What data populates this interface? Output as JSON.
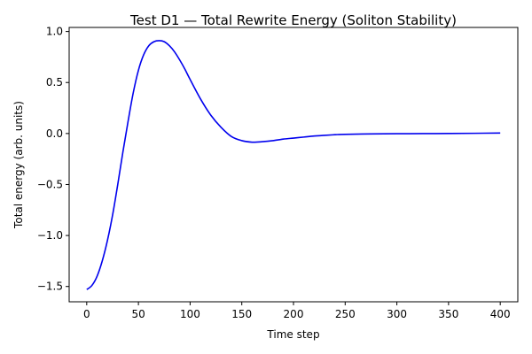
{
  "chart_data": {
    "type": "line",
    "title": "Test D1 — Total Rewrite Energy (Soliton Stability)",
    "xlabel": "Time step",
    "ylabel": "Total energy (arb. units)",
    "xlim": [
      -17,
      417
    ],
    "ylim": [
      -1.65,
      1.04
    ],
    "x_ticks": [
      0,
      50,
      100,
      150,
      200,
      250,
      300,
      350,
      400
    ],
    "y_ticks": [
      -1.5,
      -1.0,
      -0.5,
      0.0,
      0.5,
      1.0
    ],
    "y_tick_labels": [
      "−1.5",
      "−1.0",
      "−0.5",
      "0.0",
      "0.5",
      "1.0"
    ],
    "grid": false,
    "series": [
      {
        "color": "#0000ee",
        "x": [
          0,
          5,
          10,
          15,
          20,
          25,
          30,
          35,
          40,
          45,
          50,
          55,
          60,
          65,
          70,
          75,
          80,
          85,
          90,
          95,
          100,
          110,
          120,
          130,
          140,
          150,
          160,
          170,
          180,
          190,
          200,
          210,
          220,
          230,
          240,
          250,
          275,
          300,
          325,
          350,
          375,
          400
        ],
        "y": [
          -1.53,
          -1.49,
          -1.4,
          -1.25,
          -1.05,
          -0.8,
          -0.5,
          -0.18,
          0.12,
          0.4,
          0.62,
          0.77,
          0.86,
          0.9,
          0.91,
          0.9,
          0.86,
          0.8,
          0.72,
          0.63,
          0.53,
          0.34,
          0.18,
          0.06,
          -0.03,
          -0.07,
          -0.085,
          -0.08,
          -0.07,
          -0.055,
          -0.045,
          -0.035,
          -0.025,
          -0.018,
          -0.012,
          -0.008,
          -0.004,
          -0.002,
          -0.001,
          0.0,
          0.002,
          0.005
        ]
      }
    ]
  }
}
